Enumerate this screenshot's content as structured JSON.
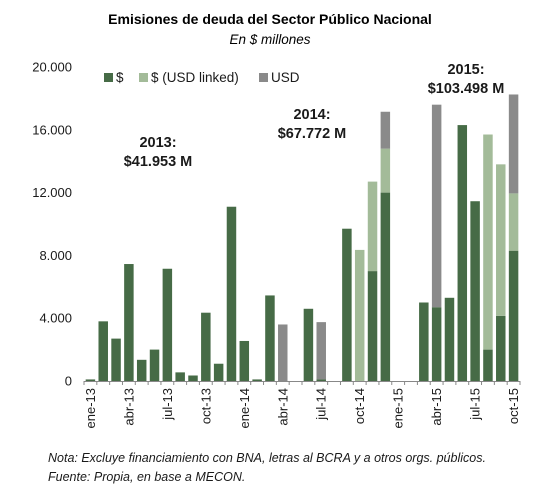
{
  "chart_data": {
    "type": "bar",
    "stacked": true,
    "title": "Emisiones de deuda del Sector Público Nacional",
    "subtitle": "En $ millones",
    "ylim": [
      0,
      20000
    ],
    "yticks": [
      "0",
      "4.000",
      "8.000",
      "12.000",
      "16.000",
      "20.000"
    ],
    "ytick_values": [
      0,
      4000,
      8000,
      12000,
      16000,
      20000
    ],
    "legend_position": "top-left",
    "categories": [
      "ene-13",
      "feb-13",
      "mar-13",
      "abr-13",
      "may-13",
      "jun-13",
      "jul-13",
      "ago-13",
      "sep-13",
      "oct-13",
      "nov-13",
      "dic-13",
      "ene-14",
      "feb-14",
      "mar-14",
      "abr-14",
      "may-14",
      "jun-14",
      "jul-14",
      "ago-14",
      "sep-14",
      "oct-14",
      "nov-14",
      "dic-14",
      "ene-15",
      "feb-15",
      "mar-15",
      "abr-15",
      "may-15",
      "jun-15",
      "jul-15",
      "ago-15",
      "sep-15",
      "oct-15"
    ],
    "xtick_labels": [
      {
        "index": 0,
        "label": "ene-13"
      },
      {
        "index": 3,
        "label": "abr-13"
      },
      {
        "index": 6,
        "label": "jul-13"
      },
      {
        "index": 9,
        "label": "oct-13"
      },
      {
        "index": 12,
        "label": "ene-14"
      },
      {
        "index": 15,
        "label": "abr-14"
      },
      {
        "index": 18,
        "label": "jul-14"
      },
      {
        "index": 21,
        "label": "oct-14"
      },
      {
        "index": 24,
        "label": "ene-15"
      },
      {
        "index": 27,
        "label": "abr-15"
      },
      {
        "index": 30,
        "label": "jul-15"
      },
      {
        "index": 33,
        "label": "oct-15"
      }
    ],
    "series": [
      {
        "name": "$",
        "color": "#466b46",
        "values": [
          100,
          3800,
          2700,
          7450,
          1350,
          2000,
          7150,
          550,
          350,
          4350,
          1100,
          11100,
          2550,
          100,
          5450,
          0,
          0,
          4600,
          100,
          0,
          9700,
          0,
          7000,
          12000,
          0,
          0,
          5000,
          4700,
          5300,
          16300,
          11450,
          2000,
          4150,
          8300
        ]
      },
      {
        "name": "$ (USD linked)",
        "color": "#a3bb99",
        "values": [
          0,
          0,
          0,
          0,
          0,
          0,
          0,
          0,
          0,
          0,
          0,
          0,
          0,
          0,
          0,
          0,
          0,
          0,
          0,
          0,
          0,
          8350,
          5700,
          2800,
          0,
          0,
          0,
          0,
          0,
          0,
          0,
          13700,
          9650,
          3650
        ]
      },
      {
        "name": "USD",
        "color": "#8a8a8a",
        "values": [
          0,
          0,
          0,
          0,
          0,
          0,
          0,
          0,
          0,
          0,
          0,
          0,
          0,
          0,
          0,
          3600,
          0,
          0,
          3650,
          0,
          0,
          0,
          0,
          2350,
          0,
          0,
          0,
          12900,
          0,
          0,
          0,
          0,
          0,
          6300
        ]
      }
    ],
    "annotations": [
      {
        "line1": "2013:",
        "line2": "$41.953 M"
      },
      {
        "line1": "2014:",
        "line2": "$67.772 M"
      },
      {
        "line1": "2015:",
        "line2": "$103.498 M"
      }
    ]
  },
  "notes": {
    "nota": "Nota: Excluye financiamiento con BNA, letras al BCRA y a otros orgs. públicos.",
    "fuente": "Fuente: Propia, en base a MECON."
  }
}
